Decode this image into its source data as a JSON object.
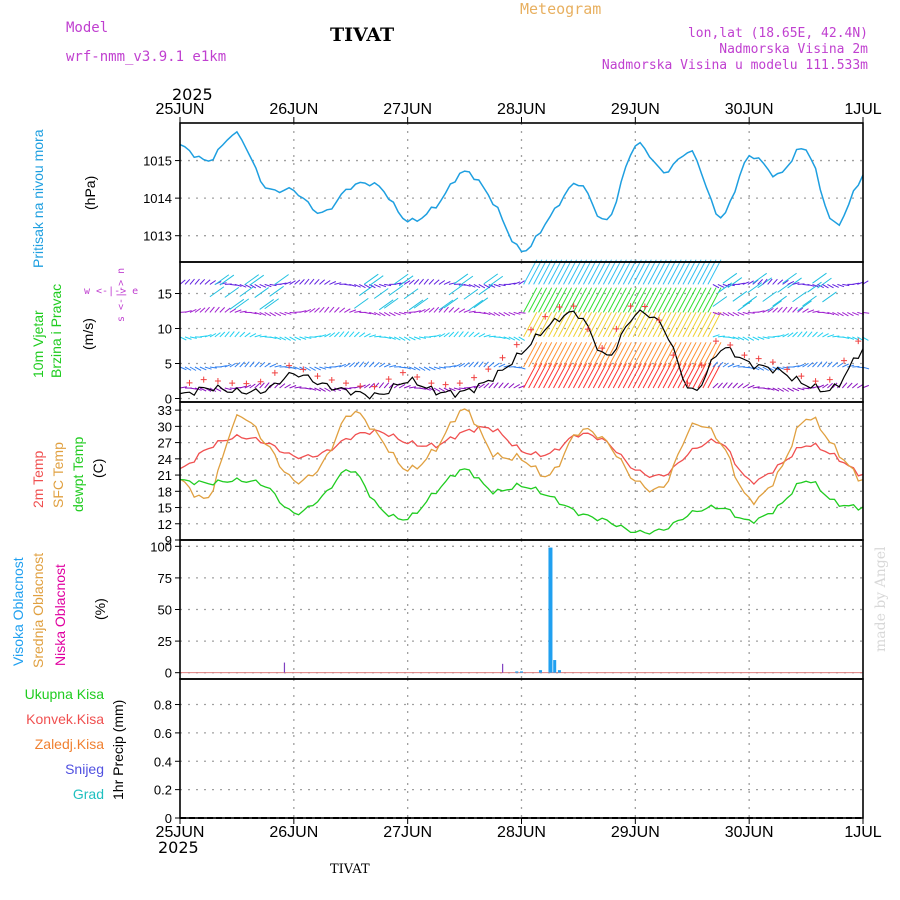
{
  "header": {
    "model_label": "Model",
    "model_name": "wrf-nmm_v3.9.1 e1km",
    "station": "TIVAT",
    "product": "Meteogram",
    "lonlat": "lon,lat (18.65E, 42.4N)",
    "elev1": "Nadmorska Visina 2m",
    "elev2": "Nadmorska Visina u modelu 111.533m",
    "footer_station": "TIVAT",
    "watermark": "made by Angel"
  },
  "colors": {
    "pressure": "#1e9fe0",
    "temp2m": "#f05050",
    "sfc": "#e0a040",
    "dew": "#20cc20",
    "wind_speed": "#000000",
    "high_cloud": "#20a0f0",
    "mid_cloud": "#e0a040",
    "low_cloud": "#e000a0",
    "grid": "#a0a0a0",
    "purple": "#c040d0"
  },
  "axes": {
    "year": "2025",
    "date_labels": [
      "25JUN",
      "26JUN",
      "27JUN",
      "28JUN",
      "29JUN",
      "30JUN",
      "1JUL"
    ]
  },
  "panels": {
    "pressure": {
      "label": "Pritisak na nivou mora",
      "unit": "(hPa)",
      "ticks": [
        "1013",
        "1014",
        "1015"
      ]
    },
    "wind": {
      "label1": "10m Vjetar",
      "label2": "Brzina i Pravac",
      "unit": "(m/s)",
      "ticks": [
        "0",
        "5",
        "10",
        "15"
      ],
      "compass": "w <-|-> e",
      "compass_vert": "s <-|-> n"
    },
    "temp": {
      "label1": "2m Temp",
      "label2": "SFC Temp",
      "label3": "dewpt Temp",
      "unit": "(C)",
      "ticks": [
        "9",
        "12",
        "15",
        "18",
        "21",
        "24",
        "27",
        "30",
        "33"
      ]
    },
    "cloud": {
      "label1": "Visoka Oblacnost",
      "label2": "Srednja Oblacnost",
      "label3": "Niska Oblacnost",
      "unit": "(%)",
      "ticks": [
        "0",
        "25",
        "50",
        "75",
        "100"
      ]
    },
    "precip": {
      "legend": [
        "Ukupna Kisa",
        "Konvek.Kisa",
        "Zaledj.Kisa",
        "Snijeg",
        "Grad"
      ],
      "unit": "1hr Precip (mm)",
      "ticks": [
        "0",
        "0.2",
        "0.4",
        "0.6",
        "0.8"
      ]
    }
  },
  "chart_data": [
    {
      "type": "line",
      "title": "Pritisak na nivou mora",
      "ylabel": "(hPa)",
      "x_unit": "hours from 25JUN 00UTC",
      "ylim": [
        12.3,
        1016.0
      ],
      "x": [
        0,
        6,
        12,
        18,
        24,
        30,
        36,
        42,
        48,
        54,
        60,
        66,
        72,
        78,
        84,
        90,
        96,
        102,
        108,
        114,
        120,
        126,
        132,
        138,
        144
      ],
      "values": [
        1015.4,
        1015.0,
        1015.7,
        1014.3,
        1014.2,
        1013.6,
        1014.3,
        1014.3,
        1013.4,
        1013.8,
        1014.7,
        1013.9,
        1012.6,
        1013.5,
        1014.4,
        1013.4,
        1015.4,
        1014.7,
        1015.2,
        1013.5,
        1015.1,
        1014.6,
        1015.3,
        1013.3,
        1014.6
      ]
    },
    {
      "type": "line",
      "title": "10m Vjetar Brzina i Pravac",
      "ylabel": "(m/s)",
      "ylim": [
        -0.5,
        19.5
      ],
      "x": [
        0,
        6,
        12,
        18,
        24,
        30,
        36,
        42,
        48,
        54,
        60,
        66,
        72,
        78,
        84,
        90,
        96,
        102,
        108,
        114,
        120,
        126,
        132,
        138,
        144
      ],
      "values": [
        0.5,
        1.5,
        1.0,
        1.2,
        3.5,
        2.0,
        1.0,
        0.5,
        2.5,
        1.0,
        1.0,
        3.0,
        6.5,
        10.5,
        12.0,
        6.0,
        12.0,
        10.0,
        1.0,
        7.0,
        5.0,
        4.0,
        2.0,
        1.5,
        7.0
      ]
    },
    {
      "type": "line",
      "title": "2m Temp / SFC Temp / dewpt Temp",
      "ylabel": "(C)",
      "ylim": [
        9,
        34.5
      ],
      "x": [
        0,
        6,
        12,
        18,
        24,
        30,
        36,
        42,
        48,
        54,
        60,
        66,
        72,
        78,
        84,
        90,
        96,
        102,
        108,
        114,
        120,
        126,
        132,
        138,
        144
      ],
      "series": [
        {
          "name": "2m Temp",
          "values": [
            22,
            26,
            28,
            27,
            24.5,
            25,
            28,
            29,
            27,
            26.5,
            29,
            29.5,
            25.5,
            25,
            28.5,
            27,
            22,
            21,
            25.5,
            27,
            20,
            22.5,
            26.5,
            24.5,
            21
          ]
        },
        {
          "name": "SFC Temp",
          "values": [
            20,
            17,
            31.5,
            27,
            20,
            23,
            32.5,
            28,
            22,
            26,
            33,
            25,
            24,
            21,
            29,
            27,
            20,
            19,
            30,
            27,
            16.5,
            21,
            31.5,
            26,
            20
          ]
        },
        {
          "name": "dewpt Temp",
          "values": [
            20,
            19.5,
            20,
            19,
            14,
            17,
            22,
            15,
            13,
            18,
            22,
            18,
            19,
            17,
            14,
            12.5,
            10.5,
            11,
            14,
            15,
            12.5,
            15,
            20,
            16,
            15
          ]
        }
      ]
    },
    {
      "type": "bar",
      "title": "Oblacnost",
      "ylabel": "(%)",
      "ylim": [
        -5,
        105
      ],
      "x": [
        22,
        68,
        71,
        72,
        76,
        78,
        79,
        80
      ],
      "series": [
        {
          "name": "Visoka Oblacnost",
          "values": [
            0,
            0,
            1,
            1,
            2,
            99,
            10,
            2
          ]
        },
        {
          "name": "Niska Oblacnost",
          "values": [
            8,
            7,
            0,
            0,
            0,
            0,
            0,
            0
          ]
        }
      ]
    },
    {
      "type": "bar",
      "title": "1hr Precip",
      "ylabel": "(mm)",
      "ylim": [
        0,
        0.98
      ],
      "x": [],
      "values": []
    }
  ]
}
